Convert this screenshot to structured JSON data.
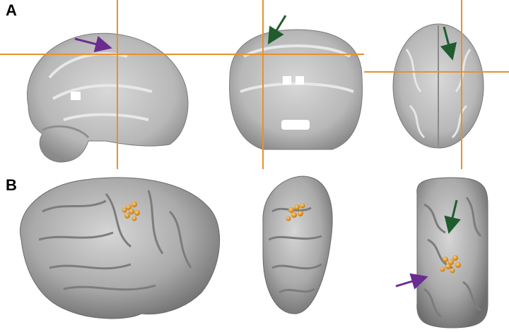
{
  "panels": [
    {
      "label": "A"
    },
    {
      "label": "B"
    }
  ],
  "colors": {
    "crosshair": "#E8912D",
    "arrow_purple": "#6A2C91",
    "arrow_green": "#1E5C2E",
    "cluster": "#F0A030",
    "brain_mri": "#BDBDBD",
    "surface": "#A8A8A8"
  }
}
